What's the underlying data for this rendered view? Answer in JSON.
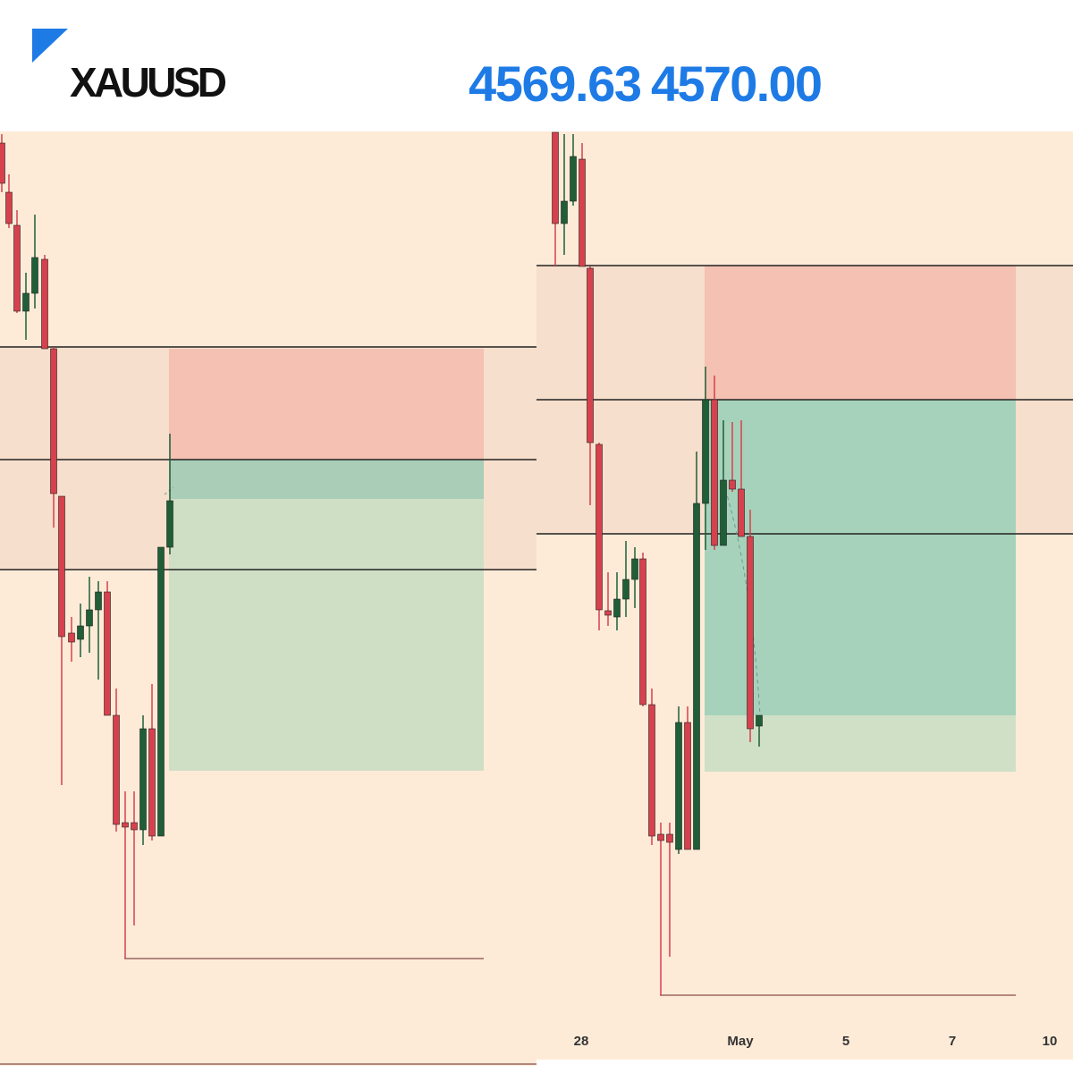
{
  "header": {
    "symbol": "XAUUSD",
    "bid": "4569.63",
    "ask": "4570.00"
  },
  "time_axis": {
    "labels": [
      "28",
      "May",
      "5",
      "7",
      "10"
    ]
  }
}
